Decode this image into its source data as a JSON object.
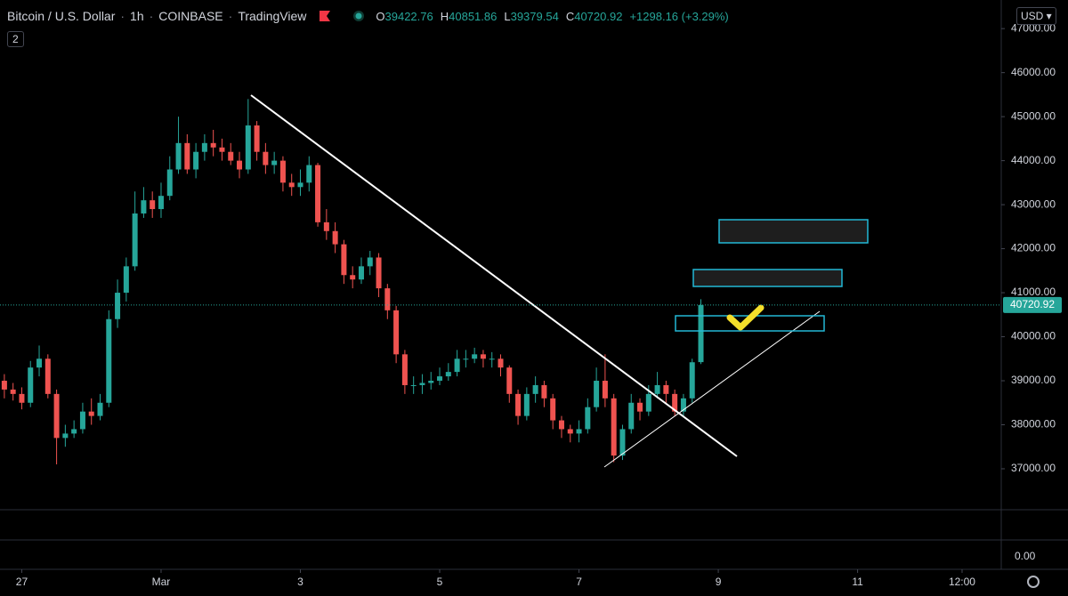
{
  "header": {
    "symbol": "Bitcoin / U.S. Dollar",
    "interval": "1h",
    "exchange": "COINBASE",
    "source": "TradingView",
    "ohlc": [
      {
        "label": "O",
        "value": "39422.76"
      },
      {
        "label": "H",
        "value": "40851.86"
      },
      {
        "label": "L",
        "value": "39379.54"
      },
      {
        "label": "C",
        "value": "40720.92"
      }
    ],
    "change": "+1298.16 (+3.29%)",
    "indicator_count": "2",
    "currency": "USD"
  },
  "lower_pane_label": "0.00",
  "chart_data": {
    "type": "candlestick",
    "up_color": "#26a69a",
    "down_color": "#ef5350",
    "open": [
      39000,
      38800,
      38700,
      38500,
      39300,
      39500,
      38700,
      37700,
      37800,
      37900,
      38300,
      38200,
      38500,
      40400,
      41000,
      41600,
      42800,
      43100,
      42900,
      43200,
      43800,
      44400,
      43800,
      44200,
      44400,
      44300,
      44200,
      44000,
      43800,
      44800,
      44200,
      43900,
      44000,
      43500,
      43400,
      43500,
      43900,
      42600,
      42400,
      42100,
      41400,
      41300,
      41600,
      41800,
      41100,
      40600,
      39600,
      38900,
      38900,
      38950,
      39000,
      39100,
      39200,
      39500,
      39500,
      39600,
      39500,
      39500,
      39300,
      38700,
      38200,
      38700,
      38900,
      38600,
      38100,
      37900,
      37800,
      37900,
      38400,
      39000,
      38600,
      37300,
      37900,
      38500,
      38300,
      38700,
      38900,
      38700,
      38300,
      38600,
      39422.76
    ],
    "high": [
      39150,
      38950,
      38850,
      39450,
      39800,
      39600,
      38800,
      38000,
      38100,
      38500,
      38600,
      38700,
      40600,
      41300,
      41800,
      43300,
      43400,
      43300,
      43500,
      44100,
      45000,
      44600,
      44400,
      44600,
      44700,
      44500,
      44400,
      44200,
      45400,
      44900,
      44400,
      44200,
      44100,
      43700,
      43800,
      44100,
      43950,
      42900,
      42600,
      42200,
      41600,
      41800,
      41950,
      41900,
      41200,
      40700,
      39700,
      39100,
      39150,
      39200,
      39300,
      39400,
      39700,
      39700,
      39750,
      39700,
      39650,
      39600,
      39350,
      38800,
      38850,
      39100,
      39000,
      38700,
      38200,
      38000,
      38100,
      38600,
      39300,
      39600,
      38700,
      38000,
      38700,
      38600,
      38900,
      39200,
      39000,
      38800,
      38700,
      39500,
      40851.86
    ],
    "low": [
      38600,
      38550,
      38350,
      38400,
      39100,
      38600,
      37100,
      37500,
      37700,
      37800,
      38000,
      38100,
      38400,
      40200,
      40800,
      41500,
      42700,
      42700,
      42700,
      43100,
      43700,
      43700,
      43600,
      44000,
      44100,
      44000,
      43900,
      43600,
      43700,
      44000,
      43700,
      43700,
      43300,
      43200,
      43200,
      43300,
      42500,
      42200,
      41900,
      41200,
      41100,
      41200,
      41400,
      40900,
      40400,
      39400,
      38700,
      38700,
      38700,
      38800,
      38900,
      39000,
      39100,
      39300,
      39400,
      39300,
      39300,
      39100,
      38500,
      38000,
      38100,
      38500,
      38400,
      37900,
      37700,
      37600,
      37600,
      37800,
      38300,
      38400,
      37150,
      37200,
      37800,
      38100,
      38200,
      38600,
      38500,
      38200,
      38200,
      38500,
      39379.54
    ],
    "close": [
      38800,
      38700,
      38500,
      39300,
      39500,
      38700,
      37700,
      37800,
      37900,
      38300,
      38200,
      38500,
      40400,
      41000,
      41600,
      42800,
      43100,
      42900,
      43200,
      43800,
      44400,
      43800,
      44200,
      44400,
      44300,
      44200,
      44000,
      43800,
      44800,
      44200,
      43900,
      44000,
      43500,
      43400,
      43500,
      43900,
      42600,
      42400,
      42100,
      41400,
      41300,
      41600,
      41800,
      41100,
      40600,
      39600,
      38900,
      38900,
      38950,
      39000,
      39100,
      39200,
      39500,
      39500,
      39600,
      39500,
      39500,
      39300,
      38700,
      38200,
      38700,
      38900,
      38600,
      38100,
      37900,
      37800,
      37900,
      38400,
      39000,
      38600,
      37300,
      37900,
      38500,
      38300,
      38700,
      38900,
      38700,
      38300,
      38600,
      39420,
      40720.92
    ],
    "xlim": [
      -0.5,
      114.5
    ],
    "xticks": [
      {
        "value": 2,
        "label": "27"
      },
      {
        "value": 18,
        "label": "Mar"
      },
      {
        "value": 34,
        "label": "3"
      },
      {
        "value": 50,
        "label": "5"
      },
      {
        "value": 66,
        "label": "7"
      },
      {
        "value": 82,
        "label": "9"
      },
      {
        "value": 98,
        "label": "11"
      },
      {
        "value": 110,
        "label": "12:00"
      }
    ],
    "ylim": [
      36070,
      47650
    ],
    "yticks": [
      {
        "value": 37000,
        "label": "37000.00"
      },
      {
        "value": 38000,
        "label": "38000.00"
      },
      {
        "value": 39000,
        "label": "39000.00"
      },
      {
        "value": 40000,
        "label": "40000.00"
      },
      {
        "value": 41000,
        "label": "41000.00"
      },
      {
        "value": 42000,
        "label": "42000.00"
      },
      {
        "value": 43000,
        "label": "43000.00"
      },
      {
        "value": 44000,
        "label": "44000.00"
      },
      {
        "value": 45000,
        "label": "45000.00"
      },
      {
        "value": 46000,
        "label": "46000.00"
      },
      {
        "value": 47000,
        "label": "47000.00"
      }
    ]
  }
}
